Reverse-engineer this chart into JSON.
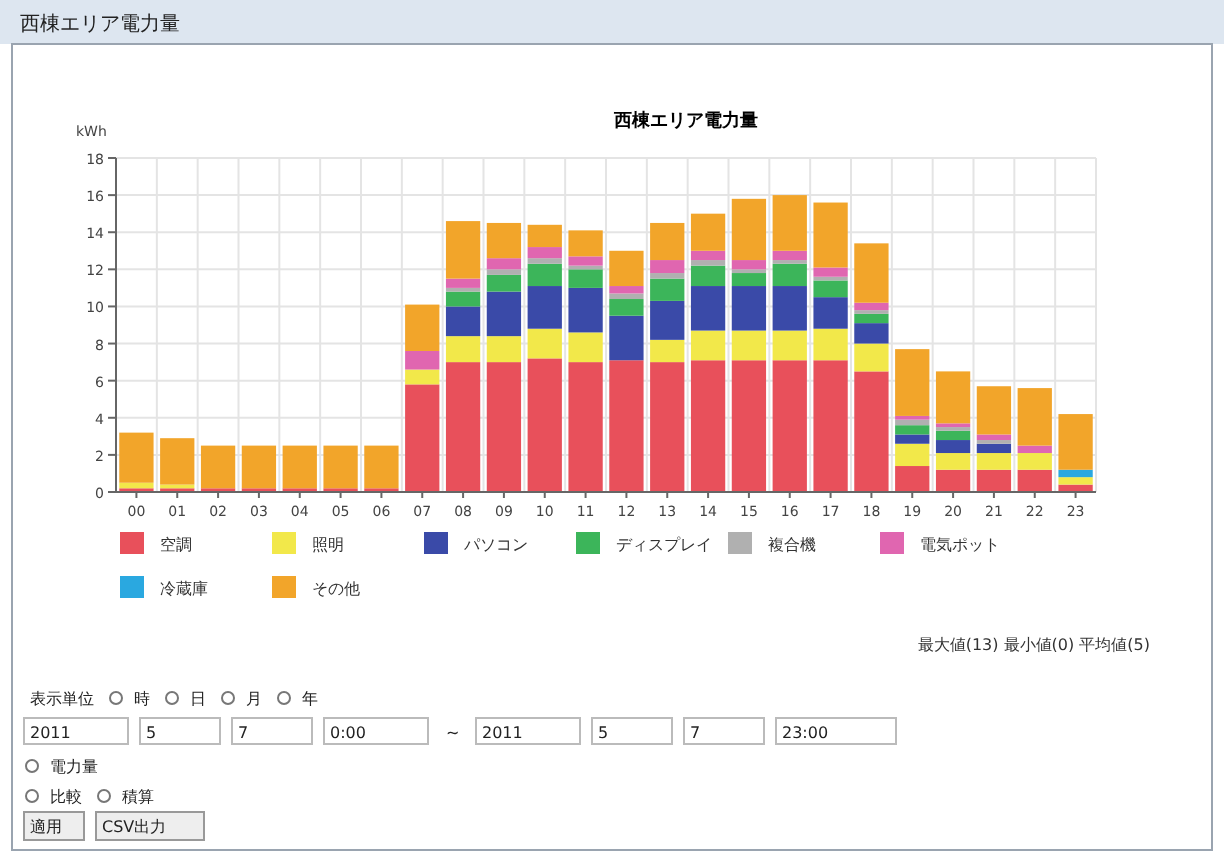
{
  "chart_data": {
    "type": "bar",
    "title": "西棟エリア電力量",
    "ylabel": "kWh",
    "categories": [
      "00",
      "01",
      "02",
      "03",
      "04",
      "05",
      "06",
      "07",
      "08",
      "09",
      "10",
      "11",
      "12",
      "13",
      "14",
      "15",
      "16",
      "17",
      "18",
      "19",
      "20",
      "21",
      "22",
      "23"
    ],
    "stacked": true,
    "ylim": [
      0,
      18
    ],
    "yticks": [
      0,
      2,
      4,
      6,
      8,
      10,
      12,
      14,
      16,
      18
    ],
    "grid": true,
    "legend": "bottom",
    "series": [
      {
        "name": "空調",
        "color": "#e8505b",
        "values": [
          0.2,
          0.2,
          0.2,
          0.2,
          0.2,
          0.2,
          0.2,
          5.8,
          7.0,
          7.0,
          7.2,
          7.0,
          7.1,
          7.0,
          7.1,
          7.1,
          7.1,
          7.1,
          6.5,
          1.4,
          1.2,
          1.2,
          1.2,
          0.4
        ]
      },
      {
        "name": "照明",
        "color": "#f2e84a",
        "values": [
          0.3,
          0.2,
          0,
          0,
          0,
          0,
          0,
          0.8,
          1.4,
          1.4,
          1.6,
          1.6,
          0,
          1.2,
          1.6,
          1.6,
          1.6,
          1.7,
          1.5,
          1.2,
          0.9,
          0.9,
          0.9,
          0.4
        ]
      },
      {
        "name": "パソコン",
        "color": "#3a4aa8",
        "values": [
          0,
          0,
          0,
          0,
          0,
          0,
          0,
          0,
          1.6,
          2.4,
          2.3,
          2.4,
          2.4,
          2.1,
          2.4,
          2.4,
          2.4,
          1.7,
          1.1,
          0.5,
          0.7,
          0.5,
          0,
          0
        ]
      },
      {
        "name": "ディスプレイ",
        "color": "#3cb55a",
        "values": [
          0,
          0,
          0,
          0,
          0,
          0,
          0,
          0,
          0.8,
          0.9,
          1.2,
          1.0,
          0.9,
          1.2,
          1.1,
          0.7,
          1.2,
          0.9,
          0.5,
          0.5,
          0.5,
          0,
          0,
          0
        ]
      },
      {
        "name": "複合機",
        "color": "#b0b0b0",
        "values": [
          0,
          0,
          0,
          0,
          0,
          0,
          0,
          0,
          0.2,
          0.3,
          0.3,
          0.2,
          0.3,
          0.3,
          0.3,
          0.2,
          0.2,
          0.2,
          0.2,
          0.3,
          0.2,
          0.2,
          0,
          0
        ]
      },
      {
        "name": "電気ポット",
        "color": "#e066b0",
        "values": [
          0,
          0,
          0,
          0,
          0,
          0,
          0,
          1.0,
          0.5,
          0.6,
          0.6,
          0.5,
          0.4,
          0.7,
          0.5,
          0.5,
          0.5,
          0.5,
          0.4,
          0.2,
          0.2,
          0.3,
          0.4,
          0
        ]
      },
      {
        "name": "冷蔵庫",
        "color": "#2aa8e0",
        "values": [
          0,
          0,
          0,
          0,
          0,
          0,
          0,
          0,
          0,
          0,
          0,
          0,
          0,
          0,
          0,
          0,
          0,
          0,
          0,
          0,
          0,
          0,
          0,
          0.4
        ]
      },
      {
        "name": "その他",
        "color": "#f2a52a",
        "values": [
          2.7,
          2.5,
          2.3,
          2.3,
          2.3,
          2.3,
          2.3,
          2.5,
          3.1,
          1.9,
          1.2,
          1.4,
          1.9,
          2.0,
          2.0,
          3.3,
          3.0,
          3.5,
          3.2,
          3.6,
          2.8,
          2.6,
          3.1,
          3.0
        ]
      }
    ],
    "annotations": [
      "西棟エリア電力量",
      "最大値(13) 最小値(0) 平均値(5)",
      "表示単位",
      "時",
      "日",
      "月",
      "年",
      "2011",
      "5",
      "7",
      "0:00",
      "~",
      "2011",
      "5",
      "7",
      "23:00",
      "電力量",
      "比較",
      "積算",
      "適用",
      "CSV出力"
    ]
  }
}
